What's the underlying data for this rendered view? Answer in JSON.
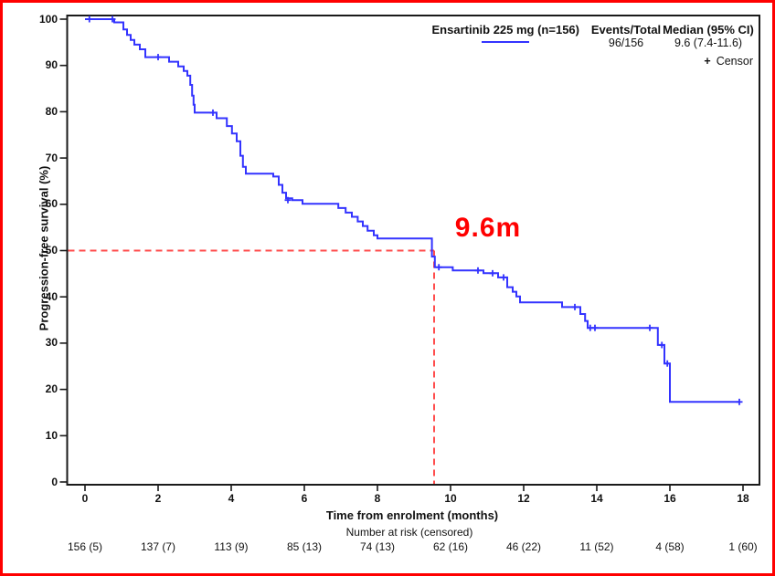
{
  "figure": {
    "border_color": "#FF0000",
    "background": "#FFFFFF",
    "frame_color": "#1A1A1A"
  },
  "legend": {
    "series_label": "Ensartinib 225 mg (n=156)",
    "events_total_header": "Events/Total",
    "median_header": "Median (95% CI)",
    "censor_symbol": "+",
    "censor_label": "Censor"
  },
  "chart_data": {
    "type": "line",
    "variant": "kaplan_meier_step",
    "title": "",
    "xlabel": "Time from enrolment (months)",
    "ylabel": "Progression-free survival (%)",
    "xlim": [
      0,
      18.5
    ],
    "ylim": [
      0,
      100
    ],
    "x_ticks": [
      0,
      2,
      4,
      6,
      8,
      10,
      12,
      14,
      16,
      18
    ],
    "y_ticks": [
      0,
      10,
      20,
      30,
      40,
      50,
      60,
      70,
      80,
      90,
      100
    ],
    "grid": "off",
    "legend_position": "top-right-inside",
    "series": [
      {
        "name": "Ensartinib 225 mg (n=156)",
        "color": "#3333FF",
        "events_total": "96/156",
        "median_95ci": "9.6 (7.4-11.6)",
        "steps": [
          [
            0,
            100
          ],
          [
            0.8,
            99.3
          ],
          [
            1.05,
            97.8
          ],
          [
            1.15,
            96.6
          ],
          [
            1.25,
            95.5
          ],
          [
            1.35,
            94.5
          ],
          [
            1.5,
            93.5
          ],
          [
            1.65,
            91.8
          ],
          [
            2.3,
            90.8
          ],
          [
            2.55,
            89.8
          ],
          [
            2.7,
            88.8
          ],
          [
            2.8,
            87.8
          ],
          [
            2.88,
            85.8
          ],
          [
            2.93,
            83.5
          ],
          [
            2.97,
            81.5
          ],
          [
            3.0,
            79.8
          ],
          [
            3.6,
            78.6
          ],
          [
            3.88,
            76.9
          ],
          [
            4.02,
            75.3
          ],
          [
            4.15,
            73.6
          ],
          [
            4.25,
            70.5
          ],
          [
            4.32,
            68.1
          ],
          [
            4.4,
            66.6
          ],
          [
            5.15,
            66.0
          ],
          [
            5.3,
            64.2
          ],
          [
            5.4,
            62.5
          ],
          [
            5.5,
            61.3
          ],
          [
            5.67,
            60.9
          ],
          [
            5.95,
            60.1
          ],
          [
            6.93,
            59.2
          ],
          [
            7.13,
            58.2
          ],
          [
            7.3,
            57.3
          ],
          [
            7.46,
            56.3
          ],
          [
            7.6,
            55.3
          ],
          [
            7.73,
            54.3
          ],
          [
            7.9,
            53.3
          ],
          [
            8.0,
            52.6
          ],
          [
            9.49,
            48.7
          ],
          [
            9.57,
            46.4
          ],
          [
            10.06,
            45.7
          ],
          [
            10.9,
            45.1
          ],
          [
            11.3,
            44.2
          ],
          [
            11.55,
            42.1
          ],
          [
            11.7,
            41.1
          ],
          [
            11.8,
            40.1
          ],
          [
            11.9,
            38.8
          ],
          [
            13.05,
            37.8
          ],
          [
            13.55,
            36.3
          ],
          [
            13.68,
            34.8
          ],
          [
            13.75,
            33.3
          ],
          [
            15.67,
            29.6
          ],
          [
            15.85,
            25.6
          ],
          [
            16.0,
            17.3
          ]
        ],
        "end_time": 17.9,
        "censor_marks": [
          [
            0.12,
            100
          ],
          [
            0.75,
            100
          ],
          [
            2.0,
            91.8
          ],
          [
            3.5,
            79.8
          ],
          [
            5.55,
            60.9
          ],
          [
            9.68,
            46.4
          ],
          [
            10.75,
            45.7
          ],
          [
            11.15,
            45.1
          ],
          [
            11.45,
            44.2
          ],
          [
            13.4,
            37.8
          ],
          [
            13.82,
            33.3
          ],
          [
            13.95,
            33.3
          ],
          [
            15.45,
            33.3
          ],
          [
            15.78,
            29.6
          ],
          [
            15.93,
            25.6
          ],
          [
            17.9,
            17.3
          ]
        ]
      }
    ],
    "median_reference": {
      "time": 9.6,
      "survival_pct": 50,
      "line_color": "#FF4D4D",
      "label": "9.6m",
      "label_color": "#FF0000"
    },
    "risk_table": {
      "label": "Number at risk (censored)",
      "times": [
        0,
        2,
        4,
        6,
        8,
        10,
        12,
        14,
        16,
        18
      ],
      "values": [
        "156 (5)",
        "137 (7)",
        "113 (9)",
        "85 (13)",
        "74 (13)",
        "62 (16)",
        "46 (22)",
        "11 (52)",
        "4 (58)",
        "1 (60)"
      ]
    }
  }
}
